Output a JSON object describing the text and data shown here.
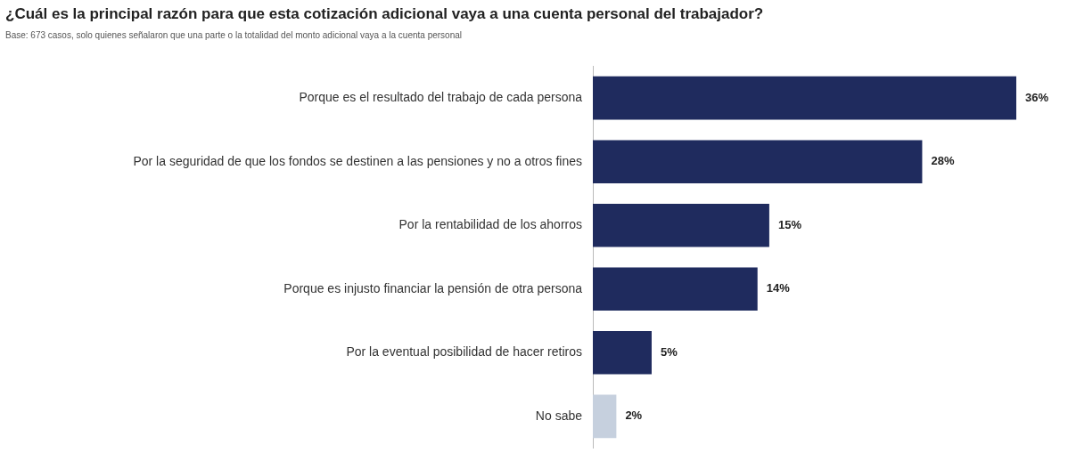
{
  "chart_data": {
    "type": "bar",
    "orientation": "horizontal",
    "title": "¿Cuál es la principal razón para que esta cotización adicional vaya a una cuenta personal del trabajador?",
    "subtitle": "Base: 673 casos, solo quienes señalaron que una parte o la totalidad del monto adicional vaya a la cuenta personal",
    "categories": [
      "Porque es el resultado del trabajo de cada persona",
      "Por la seguridad de que los fondos se destinen a las pensiones y no a otros fines",
      "Por la rentabilidad de los ahorros",
      "Porque es injusto financiar la pensión de otra persona",
      "Por la eventual posibilidad de hacer retiros",
      "No sabe"
    ],
    "values": [
      36,
      28,
      15,
      14,
      5,
      2
    ],
    "colors": [
      "#1f2b5e",
      "#1f2b5e",
      "#1f2b5e",
      "#1f2b5e",
      "#1f2b5e",
      "#c6d0de"
    ],
    "value_labels": [
      "36%",
      "28%",
      "15%",
      "14%",
      "5%",
      "2%"
    ],
    "grid": false,
    "legend": false
  }
}
